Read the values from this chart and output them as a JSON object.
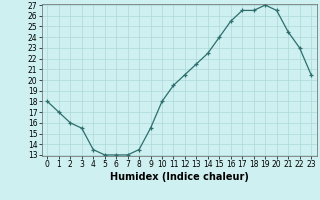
{
  "x": [
    0,
    1,
    2,
    3,
    4,
    5,
    6,
    7,
    8,
    9,
    10,
    11,
    12,
    13,
    14,
    15,
    16,
    17,
    18,
    19,
    20,
    21,
    22,
    23
  ],
  "y": [
    18,
    17,
    16,
    15.5,
    13.5,
    13,
    13,
    13,
    13.5,
    15.5,
    18,
    19.5,
    20.5,
    21.5,
    22.5,
    24,
    25.5,
    26.5,
    26.5,
    27,
    26.5,
    24.5,
    23,
    20.5
  ],
  "xlabel": "Humidex (Indice chaleur)",
  "ylim_min": 13,
  "ylim_max": 27,
  "xlim_min": -0.5,
  "xlim_max": 23.5,
  "yticks": [
    13,
    14,
    15,
    16,
    17,
    18,
    19,
    20,
    21,
    22,
    23,
    24,
    25,
    26,
    27
  ],
  "xticks": [
    0,
    1,
    2,
    3,
    4,
    5,
    6,
    7,
    8,
    9,
    10,
    11,
    12,
    13,
    14,
    15,
    16,
    17,
    18,
    19,
    20,
    21,
    22,
    23
  ],
  "line_color": "#2d6e6e",
  "marker": "+",
  "bg_color": "#cff0f0",
  "grid_color": "#aed8d8",
  "axis_fontsize": 6.5,
  "tick_fontsize": 5.5,
  "xlabel_fontsize": 7
}
